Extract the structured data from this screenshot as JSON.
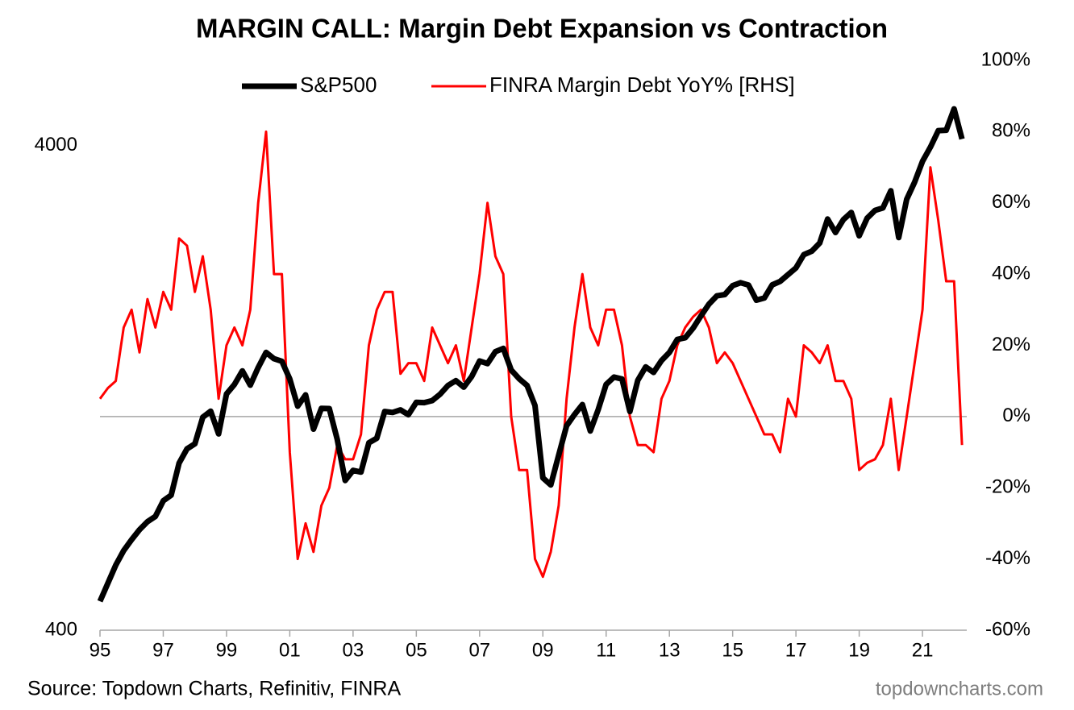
{
  "chart_data": {
    "type": "line",
    "title": "MARGIN CALL: Margin Debt Expansion vs Contraction",
    "source": "Source: Topdown Charts, Refinitiv, FINRA",
    "watermark": "topdowncharts.com",
    "x": [
      1995,
      1995.25,
      1995.5,
      1995.75,
      1996,
      1996.25,
      1996.5,
      1996.75,
      1997,
      1997.25,
      1997.5,
      1997.75,
      1998,
      1998.25,
      1998.5,
      1998.75,
      1999,
      1999.25,
      1999.5,
      1999.75,
      2000,
      2000.25,
      2000.5,
      2000.75,
      2001,
      2001.25,
      2001.5,
      2001.75,
      2002,
      2002.25,
      2002.5,
      2002.75,
      2003,
      2003.25,
      2003.5,
      2003.75,
      2004,
      2004.25,
      2004.5,
      2004.75,
      2005,
      2005.25,
      2005.5,
      2005.75,
      2006,
      2006.25,
      2006.5,
      2006.75,
      2007,
      2007.25,
      2007.5,
      2007.75,
      2008,
      2008.25,
      2008.5,
      2008.75,
      2009,
      2009.25,
      2009.5,
      2009.75,
      2010,
      2010.25,
      2010.5,
      2010.75,
      2011,
      2011.25,
      2011.5,
      2011.75,
      2012,
      2012.25,
      2012.5,
      2012.75,
      2013,
      2013.25,
      2013.5,
      2013.75,
      2014,
      2014.25,
      2014.5,
      2014.75,
      2015,
      2015.25,
      2015.5,
      2015.75,
      2016,
      2016.25,
      2016.5,
      2016.75,
      2017,
      2017.25,
      2017.5,
      2017.75,
      2018,
      2018.25,
      2018.5,
      2018.75,
      2019,
      2019.25,
      2019.5,
      2019.75,
      2020,
      2020.25,
      2020.5,
      2020.75,
      2021,
      2021.25,
      2021.5,
      2021.75,
      2022,
      2022.25
    ],
    "series": [
      {
        "name": "S&P500",
        "color": "#000000",
        "axis": "y",
        "values": [
          459,
          500,
          545,
          584,
          615,
          645,
          670,
          687,
          740,
          760,
          885,
          947,
          970,
          1101,
          1133,
          1017,
          1229,
          1286,
          1372,
          1282,
          1394,
          1498,
          1454,
          1436,
          1320,
          1160,
          1224,
          1040,
          1148,
          1147,
          990,
          815,
          855,
          848,
          975,
          996,
          1131,
          1126,
          1140,
          1114,
          1181,
          1180,
          1191,
          1228,
          1280,
          1310,
          1270,
          1336,
          1438,
          1420,
          1503,
          1527,
          1378,
          1322,
          1280,
          1164,
          825,
          798,
          919,
          1057,
          1115,
          1169,
          1031,
          1141,
          1286,
          1332,
          1320,
          1131,
          1312,
          1398,
          1362,
          1441,
          1498,
          1593,
          1606,
          1681,
          1782,
          1884,
          1960,
          1972,
          2058,
          2086,
          2063,
          1920,
          1940,
          2065,
          2099,
          2168,
          2238,
          2384,
          2423,
          2519,
          2823,
          2648,
          2816,
          2914,
          2607,
          2834,
          2942,
          2977,
          3230,
          2585,
          3100,
          3363,
          3714,
          3973,
          4298,
          4307,
          4766,
          4130
        ]
      },
      {
        "name": "FINRA Margin Debt YoY% [RHS]",
        "color": "#ff0000",
        "axis": "y2",
        "values": [
          5,
          8,
          10,
          25,
          30,
          18,
          33,
          25,
          35,
          30,
          50,
          48,
          35,
          45,
          30,
          5,
          20,
          25,
          20,
          30,
          60,
          80,
          40,
          40,
          -10,
          -40,
          -30,
          -38,
          -25,
          -20,
          -8,
          -12,
          -12,
          -5,
          20,
          30,
          35,
          35,
          12,
          15,
          15,
          10,
          25,
          20,
          15,
          20,
          10,
          25,
          40,
          60,
          45,
          40,
          0,
          -15,
          -15,
          -40,
          -45,
          -38,
          -25,
          5,
          25,
          40,
          25,
          20,
          30,
          30,
          20,
          0,
          -8,
          -8,
          -10,
          5,
          10,
          20,
          25,
          28,
          30,
          25,
          15,
          18,
          15,
          10,
          5,
          0,
          -5,
          -5,
          -10,
          5,
          0,
          20,
          18,
          15,
          20,
          10,
          10,
          5,
          -15,
          -13,
          -12,
          -8,
          5,
          -15,
          0,
          15,
          30,
          70,
          55,
          38,
          38,
          -8
        ]
      }
    ],
    "xlim": [
      1995,
      2022.4
    ],
    "xticks": [
      {
        "value": 1995,
        "label": "95"
      },
      {
        "value": 1997,
        "label": "97"
      },
      {
        "value": 1999,
        "label": "99"
      },
      {
        "value": 2001,
        "label": "01"
      },
      {
        "value": 2003,
        "label": "03"
      },
      {
        "value": 2005,
        "label": "05"
      },
      {
        "value": 2007,
        "label": "07"
      },
      {
        "value": 2009,
        "label": "09"
      },
      {
        "value": 2011,
        "label": "11"
      },
      {
        "value": 2013,
        "label": "13"
      },
      {
        "value": 2015,
        "label": "15"
      },
      {
        "value": 2017,
        "label": "17"
      },
      {
        "value": 2019,
        "label": "19"
      },
      {
        "value": 2021,
        "label": "21"
      }
    ],
    "ylim": [
      400,
      6000
    ],
    "ylog": true,
    "yticks": [
      400,
      4000
    ],
    "y2lim": [
      -60,
      100
    ],
    "y2ticks": [
      {
        "value": -60,
        "label": "-60%"
      },
      {
        "value": -40,
        "label": "-40%"
      },
      {
        "value": -20,
        "label": "-20%"
      },
      {
        "value": 0,
        "label": "0%"
      },
      {
        "value": 20,
        "label": "20%"
      },
      {
        "value": 40,
        "label": "40%"
      },
      {
        "value": 60,
        "label": "60%"
      },
      {
        "value": 80,
        "label": "80%"
      },
      {
        "value": 100,
        "label": "100%"
      }
    ],
    "zero_line": true,
    "legend": "top"
  }
}
